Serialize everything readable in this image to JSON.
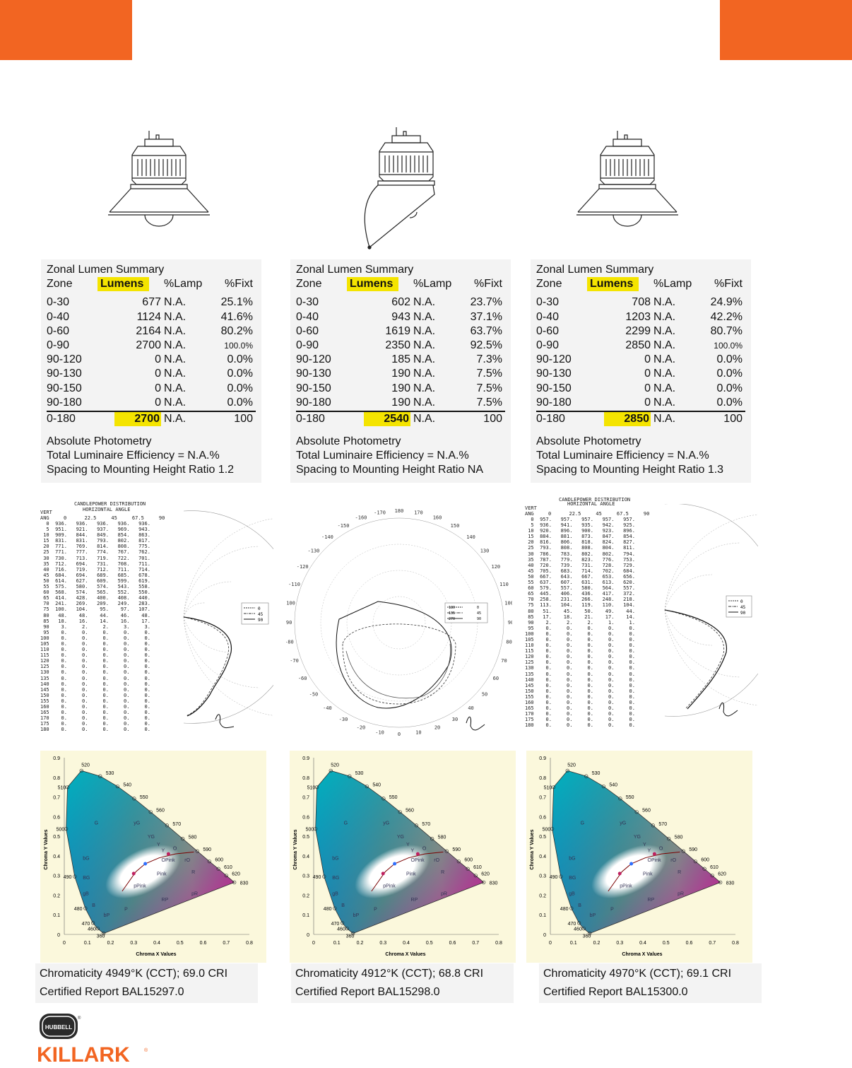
{
  "brand": {
    "logo_text": "KILLARK",
    "badge_text": "HUBBELL",
    "accent": "#f26522"
  },
  "columns": [
    {
      "zonal": {
        "title": "Zonal Lumen Summary",
        "headers": [
          "Zone",
          "Lumens",
          "%Lamp",
          "%Fixt"
        ],
        "rows": [
          [
            "0-30",
            "677",
            "N.A.",
            "25.1%"
          ],
          [
            "0-40",
            "1124",
            "N.A.",
            "41.6%"
          ],
          [
            "0-60",
            "2164",
            "N.A.",
            "80.2%"
          ],
          [
            "0-90",
            "2700",
            "N.A.",
            "100.0%"
          ],
          [
            "90-120",
            "0",
            "N.A.",
            "0.0%"
          ],
          [
            "90-130",
            "0",
            "N.A.",
            "0.0%"
          ],
          [
            "90-150",
            "0",
            "N.A.",
            "0.0%"
          ],
          [
            "90-180",
            "0",
            "N.A.",
            "0.0%"
          ]
        ],
        "total": [
          "0-180",
          "2700",
          "N.A.",
          "100"
        ],
        "foot": [
          "Absolute Photometry",
          "Total Luminaire Efficiency = N.A.%",
          "Spacing to Mounting Height Ratio 1.2"
        ]
      },
      "caption": [
        "Chromaticity 4949°K (CCT); 69.0 CRI",
        "Certified Report BAL15297.0"
      ]
    },
    {
      "zonal": {
        "title": "Zonal Lumen Summary",
        "headers": [
          "Zone",
          "Lumens",
          "%Lamp",
          "%Fixt"
        ],
        "rows": [
          [
            "0-30",
            "602",
            "N.A.",
            "23.7%"
          ],
          [
            "0-40",
            "943",
            "N.A.",
            "37.1%"
          ],
          [
            "0-60",
            "1619",
            "N.A.",
            "63.7%"
          ],
          [
            "0-90",
            "2350",
            "N.A.",
            "92.5%"
          ],
          [
            "90-120",
            "185",
            "N.A.",
            "7.3%"
          ],
          [
            "90-130",
            "190",
            "N.A.",
            "7.5%"
          ],
          [
            "90-150",
            "190",
            "N.A.",
            "7.5%"
          ],
          [
            "90-180",
            "190",
            "N.A.",
            "7.5%"
          ]
        ],
        "total": [
          "0-180",
          "2540",
          "N.A.",
          "100"
        ],
        "foot": [
          "Absolute Photometry",
          "Total Luminaire Efficiency = N.A.%",
          "Spacing to Mounting Height Ratio NA"
        ]
      },
      "caption": [
        "Chromaticity 4912°K (CCT); 68.8 CRI",
        "Certified Report BAL15298.0"
      ]
    },
    {
      "zonal": {
        "title": "Zonal Lumen Summary",
        "headers": [
          "Zone",
          "Lumens",
          "%Lamp",
          "%Fixt"
        ],
        "rows": [
          [
            "0-30",
            "708",
            "N.A.",
            "24.9%"
          ],
          [
            "0-40",
            "1203",
            "N.A.",
            "42.2%"
          ],
          [
            "0-60",
            "2299",
            "N.A.",
            "80.7%"
          ],
          [
            "0-90",
            "2850",
            "N.A.",
            "100.0%"
          ],
          [
            "90-120",
            "0",
            "N.A.",
            "0.0%"
          ],
          [
            "90-130",
            "0",
            "N.A.",
            "0.0%"
          ],
          [
            "90-150",
            "0",
            "N.A.",
            "0.0%"
          ],
          [
            "90-180",
            "0",
            "N.A.",
            "0.0%"
          ]
        ],
        "total": [
          "0-180",
          "2850",
          "N.A.",
          "100"
        ],
        "foot": [
          "Absolute Photometry",
          "Total Luminaire Efficiency = N.A.%",
          "Spacing to Mounting Height Ratio 1.3"
        ]
      },
      "caption": [
        "Chromaticity 4970°K (CCT); 69.1 CRI",
        "Certified Report BAL15300.0"
      ]
    }
  ],
  "candlepower": {
    "title": "CANDLEPOWER DISTRIBUTION",
    "subtitle": "HORIZONTAL ANGLE",
    "vert_label": "VERT",
    "ang_label": "ANG",
    "h_angles": "0      22.5     45     67.5     90",
    "table1": "  0  936.   936.   936.   936.   936.\n  5  951.   921.   937.   969.   943.\n 10  909.   844.   849.   854.   863.\n 15  831.   831.   793.   802.   817.\n 20  771.   769.   814.   808.   775.\n 25  771.   777.   774.   767.   762.\n 30  730.   713.   719.   722.   701.\n 35  712.   694.   731.   708.   711.\n 40  716.   719.   712.   711.   714.\n 45  684.   694.   689.   685.   678.\n 50  614.   627.   609.   599.   619.\n 55  575.   580.   574.   543.   558.\n 60  568.   574.   565.   552.   550.\n 65  414.   428.   400.   408.   440.\n 70  241.   269.   209.   249.   283.\n 75  100.   104.    95.    97.   107.\n 80   48.    48.    44.    46.    48.\n 85   18.    16.    14.    16.    17.\n 90    3.     2.     2.     3.     3.\n 95    0.     0.     0.     0.     0.\n100    0.     0.     0.     0.     0.\n105    0.     0.     0.     0.     0.\n110    0.     0.     0.     0.     0.\n115    0.     0.     0.     0.     0.\n120    0.     0.     0.     0.     0.\n125    0.     0.     0.     0.     0.\n130    0.     0.     0.     0.     0.\n135    0.     0.     0.     0.     0.\n140    0.     0.     0.     0.     0.\n145    0.     0.     0.     0.     0.\n150    0.     0.     0.     0.     0.\n155    0.     0.     0.     0.     0.\n160    0.     0.     0.     0.     0.\n165    0.     0.     0.     0.     0.\n170    0.     0.     0.     0.     0.\n175    0.     0.     0.     0.     0.\n180    0.     0.     0.     0.     0.",
    "table3": "  0  957.   957.   957.   957.   957.\n  5  936.   941.   935.   942.   925.\n 10  920.   896.   900.   923.   896.\n 15  884.   881.   873.   847.   854.\n 20  816.   806.   818.   824.   827.\n 25  793.   808.   808.   804.   811.\n 30  786.   783.   802.   802.   794.\n 35  787.   779.   823.   776.   753.\n 40  720.   739.   731.   728.   729.\n 45  705.   683.   714.   702.   684.\n 50  667.   643.   667.   653.   656.\n 55  637.   607.   631.   613.   620.\n 60  579.   557.   580.   564.   557.\n 65  445.   406.   436.   417.   372.\n 70  258.   231.   266.   248.   218.\n 75  113.   104.   119.   110.   104.\n 80   51.    45.    50.    49.    44.\n 85   17.    18.    21.    17.    14.\n 90    2.     2.     2.     1.     1.\n 95    0.     0.     0.     0.     0.\n100    0.     0.     0.     0.     0.\n105    0.     0.     0.     0.     0.\n110    0.     0.     0.     0.     0.\n115    0.     0.     0.     0.     0.\n120    0.     0.     0.     0.     0.\n125    0.     0.     0.     0.     0.\n130    0.     0.     0.     0.     0.\n135    0.     0.     0.     0.     0.\n140    0.     0.     0.     0.     0.\n145    0.     0.     0.     0.     0.\n150    0.     0.     0.     0.     0.\n155    0.     0.     0.     0.     0.\n160    0.     0.     0.     0.     0.\n165    0.     0.     0.     0.     0.\n170    0.     0.     0.     0.     0.\n175    0.     0.     0.     0.     0.\n180    0.     0.     0.     0.     0.",
    "legend1": [
      "0",
      "45",
      "90"
    ],
    "legend2": [
      "180",
      "135",
      "270"
    ],
    "polar_labels": [
      "-170",
      "180",
      "170",
      "160",
      "150",
      "140",
      "130",
      "120",
      "110",
      "100",
      "90",
      "80",
      "70",
      "60",
      "50",
      "40",
      "30",
      "20",
      "10",
      "0",
      "-10",
      "-20",
      "-30",
      "-40",
      "-50",
      "-60",
      "-70",
      "-80",
      "-90",
      "-100",
      "-110",
      "-120",
      "-130",
      "-140",
      "-150",
      "-160"
    ]
  },
  "cie": {
    "ylabel": "Chroma Y Values",
    "xlabel": "Chroma X Values",
    "xticks": [
      "0",
      "0.1",
      "0.2",
      "0.3",
      "0.4",
      "0.5",
      "0.6",
      "0.7",
      "0.8"
    ],
    "yticks": [
      "0",
      "0.1",
      "0.2",
      "0.3",
      "0.4",
      "0.5",
      "0.6",
      "0.7",
      "0.8",
      "0.9"
    ],
    "wavelengths": [
      "520",
      "530",
      "540",
      "550",
      "560",
      "570",
      "580",
      "590",
      "600",
      "610",
      "620",
      "830",
      "510",
      "500",
      "490",
      "480",
      "470",
      "460",
      "360"
    ],
    "regions": [
      "G",
      "yG",
      "YG",
      "Y",
      "Y",
      "O",
      "OPink",
      "rO",
      "R",
      "Pink",
      "pPink",
      "RP",
      "pR",
      "P",
      "bP",
      "B",
      "gB",
      "bG",
      "BG"
    ]
  }
}
